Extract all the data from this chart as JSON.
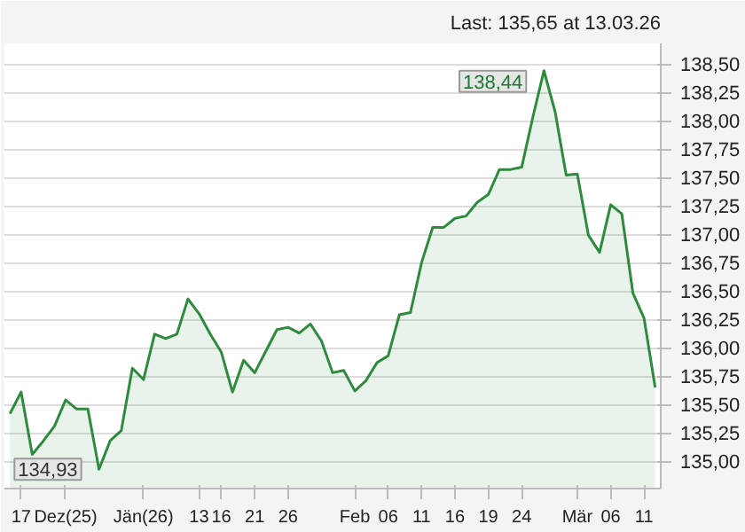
{
  "chart_data": {
    "type": "area",
    "categories": [
      null,
      "17",
      null,
      null,
      null,
      "Dez(25)",
      null,
      null,
      null,
      null,
      null,
      null,
      "Jän(26)",
      null,
      null,
      null,
      null,
      "13",
      null,
      "16",
      null,
      null,
      "21",
      null,
      null,
      "26",
      null,
      null,
      null,
      null,
      null,
      "Feb",
      null,
      null,
      "06",
      null,
      null,
      "11",
      null,
      null,
      "16",
      null,
      null,
      "19",
      null,
      null,
      "24",
      null,
      null,
      null,
      null,
      "Mär",
      null,
      null,
      "06",
      null,
      null,
      "11",
      null
    ],
    "series": [
      {
        "color": "#2e8b3e",
        "values": [
          135.42,
          135.61,
          135.06,
          135.18,
          135.31,
          135.54,
          135.46,
          135.46,
          134.93,
          135.18,
          135.27,
          135.82,
          135.72,
          136.12,
          136.08,
          136.12,
          136.43,
          136.3,
          136.12,
          135.96,
          135.61,
          135.89,
          135.78,
          135.97,
          136.16,
          136.18,
          136.13,
          136.21,
          136.06,
          135.78,
          135.8,
          135.62,
          135.71,
          135.87,
          135.93,
          136.29,
          136.31,
          136.75,
          137.06,
          137.06,
          137.14,
          137.16,
          137.28,
          137.35,
          137.57,
          137.57,
          137.59,
          138.03,
          138.44,
          138.08,
          137.52,
          137.53,
          136.99,
          136.84,
          137.26,
          137.18,
          136.48,
          136.26,
          135.65
        ]
      }
    ],
    "ylim": [
      134.76,
      138.68
    ],
    "yticks": [
      {
        "value": 135,
        "label": "135,00"
      },
      {
        "value": 135.25,
        "label": "135,25"
      },
      {
        "value": 135.5,
        "label": "135,50"
      },
      {
        "value": 135.75,
        "label": "135,75"
      },
      {
        "value": 136,
        "label": "136,00"
      },
      {
        "value": 136.25,
        "label": "136,25"
      },
      {
        "value": 136.5,
        "label": "136,50"
      },
      {
        "value": 136.75,
        "label": "136,75"
      },
      {
        "value": 137,
        "label": "137,00"
      },
      {
        "value": 137.25,
        "label": "137,25"
      },
      {
        "value": 137.5,
        "label": "137,50"
      },
      {
        "value": 137.75,
        "label": "137,75"
      },
      {
        "value": 138,
        "label": "138,00"
      },
      {
        "value": 138.25,
        "label": "138,25"
      },
      {
        "value": 138.5,
        "label": "138,50"
      }
    ],
    "grid": "y",
    "annotations": [
      "Last: 135,65 at 13.03.26",
      "138,44",
      "134,93"
    ]
  }
}
